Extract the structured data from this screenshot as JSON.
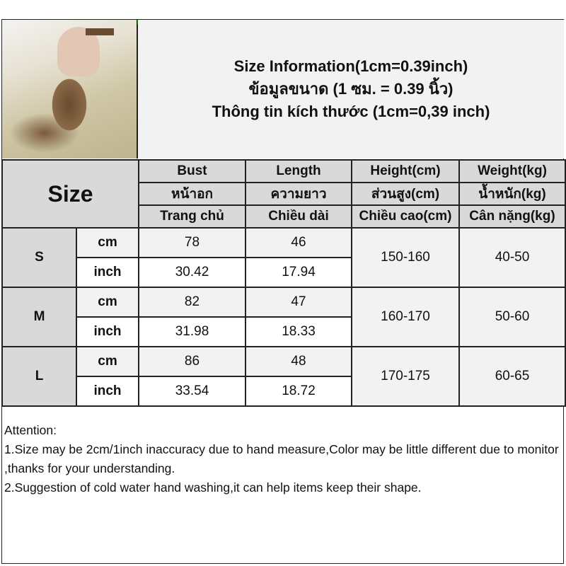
{
  "photo_alt": "leopard print top product photo",
  "title": {
    "line1": "Size Information(1cm=0.39inch)",
    "line2": "ข้อมูลขนาด (1 ซม. = 0.39 นิ้ว)",
    "line3": "Thông tin kích thước (1cm=0,39 inch)"
  },
  "table": {
    "size_label": "Size",
    "columns": [
      {
        "en": "Bust",
        "th": "หน้าอก",
        "vi": "Trang chủ"
      },
      {
        "en": "Length",
        "th": "ความยาว",
        "vi": "Chiều dài"
      },
      {
        "en": "Height(cm)",
        "th": "ส่วนสูง(cm)",
        "vi": "Chiều cao(cm)"
      },
      {
        "en": "Weight(kg)",
        "th": "น้ำหนัก(kg)",
        "vi": "Cân nặng(kg)"
      }
    ],
    "rows": [
      {
        "size": "S",
        "cm_label": "cm",
        "inch_label": "inch",
        "bust_cm": "78",
        "length_cm": "46",
        "bust_inch": "30.42",
        "length_inch": "17.94",
        "height": "150-160",
        "weight": "40-50"
      },
      {
        "size": "M",
        "cm_label": "cm",
        "inch_label": "inch",
        "bust_cm": "82",
        "length_cm": "47",
        "bust_inch": "31.98",
        "length_inch": "18.33",
        "height": "160-170",
        "weight": "50-60"
      },
      {
        "size": "L",
        "cm_label": "cm",
        "inch_label": "inch",
        "bust_cm": "86",
        "length_cm": "48",
        "bust_inch": "33.54",
        "length_inch": "18.72",
        "height": "170-175",
        "weight": "60-65"
      }
    ]
  },
  "attention": {
    "heading": "Attention:",
    "note1": "1.Size may be 2cm/1inch inaccuracy due to hand measure,Color may be little different due to monitor ,thanks for your understanding.",
    "note2": "2.Suggestion of cold water hand washing,it can help items keep their shape."
  },
  "colors": {
    "header_bg": "#d9d9d9",
    "light_bg": "#f2f2f2",
    "border": "#222222"
  }
}
